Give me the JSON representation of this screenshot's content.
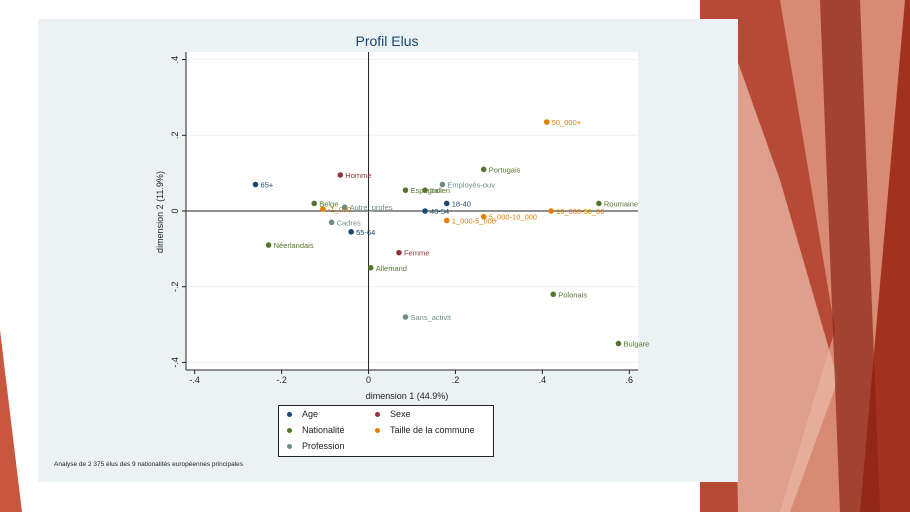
{
  "chart_data": {
    "type": "scatter",
    "title": "Profil Elus",
    "xlabel": "dimension 1 (44.9%)",
    "ylabel": "dimension 2 (11.9%)",
    "xlim": [
      -0.42,
      0.62
    ],
    "ylim": [
      -0.42,
      0.42
    ],
    "xticks": [
      -0.4,
      -0.2,
      0,
      0.2,
      0.4,
      0.6
    ],
    "xtick_labels": [
      "-.4",
      "-.2",
      "0",
      ".2",
      ".4",
      ".6"
    ],
    "yticks": [
      -0.4,
      -0.2,
      0,
      0.2,
      0.4
    ],
    "ytick_labels": [
      "-.4",
      "-.2",
      "0",
      ".2",
      ".4"
    ],
    "grid": true,
    "legend_position": "bottom",
    "series": [
      {
        "name": "Age",
        "color": "#1a476f",
        "points": [
          {
            "label": "65+",
            "x": -0.26,
            "y": 0.07
          },
          {
            "label": "18-40",
            "x": 0.18,
            "y": 0.02
          },
          {
            "label": "40-54",
            "x": 0.13,
            "y": 0.0
          },
          {
            "label": "55-64",
            "x": -0.04,
            "y": -0.055
          }
        ]
      },
      {
        "name": "Sexe",
        "color": "#90353b",
        "points": [
          {
            "label": "Homme",
            "x": -0.065,
            "y": 0.095
          },
          {
            "label": "Femme",
            "x": 0.07,
            "y": -0.11
          }
        ]
      },
      {
        "name": "Nationalité",
        "color": "#55752f",
        "points": [
          {
            "label": "Portugais",
            "x": 0.265,
            "y": 0.11
          },
          {
            "label": "Espagnol",
            "x": 0.085,
            "y": 0.055
          },
          {
            "label": "Italien",
            "x": 0.13,
            "y": 0.055
          },
          {
            "label": "Roumaine",
            "x": 0.53,
            "y": 0.02
          },
          {
            "label": "Belge",
            "x": -0.125,
            "y": 0.02
          },
          {
            "label": "Néerlandais",
            "x": -0.23,
            "y": -0.09
          },
          {
            "label": "Allemand",
            "x": 0.005,
            "y": -0.15
          },
          {
            "label": "Polonais",
            "x": 0.425,
            "y": -0.22
          },
          {
            "label": "Bulgare",
            "x": 0.575,
            "y": -0.35
          }
        ]
      },
      {
        "name": "Taille de la commune",
        "color": "#e37e00",
        "points": [
          {
            "label": "50_000+",
            "x": 0.41,
            "y": 0.235
          },
          {
            "label": "10_000-50_00",
            "x": 0.42,
            "y": 0.0
          },
          {
            "label": "5_000-10_000",
            "x": 0.265,
            "y": -0.015
          },
          {
            "label": "1_000-5_000",
            "x": 0.18,
            "y": -0.025
          },
          {
            "label": "-1_000",
            "x": -0.105,
            "y": 0.005
          }
        ]
      },
      {
        "name": "Profession",
        "color": "#6e8e84",
        "points": [
          {
            "label": "Employés-ouv",
            "x": 0.17,
            "y": 0.07
          },
          {
            "label": "Autre_profes",
            "x": -0.055,
            "y": 0.01
          },
          {
            "label": "Cadres",
            "x": -0.085,
            "y": -0.03
          },
          {
            "label": "Sans_activit",
            "x": 0.085,
            "y": -0.28
          }
        ]
      }
    ]
  },
  "footnote": "Analyse de 2 375 élus des 9 nationalités européennes principales"
}
